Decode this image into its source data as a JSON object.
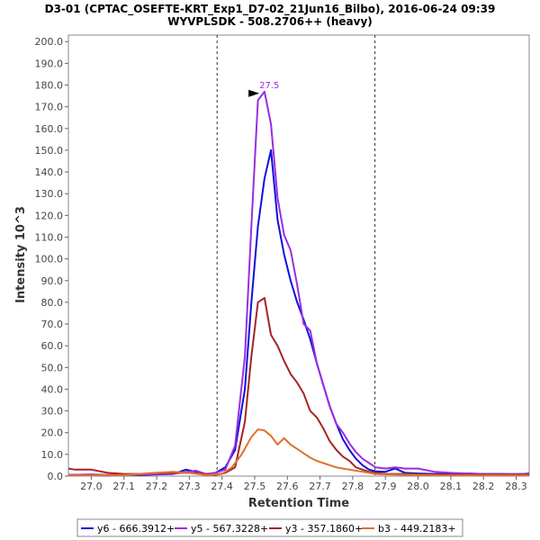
{
  "chart_data": {
    "type": "line",
    "title": "D3-01 (CPTAC_OSEFTE-KRT_Exp1_D7-02_21Jun16_Bilbo), 2016-06-24 09:39",
    "subtitle": "WYVPLSDK - 508.2706++ (heavy)",
    "xlabel": "Retention Time",
    "ylabel": "Intensity 10^3",
    "xlim": [
      26.93,
      28.34
    ],
    "ylim": [
      0,
      203
    ],
    "x_ticks": [
      27.0,
      27.1,
      27.2,
      27.3,
      27.4,
      27.5,
      27.6,
      27.7,
      27.8,
      27.9,
      28.0,
      28.1,
      28.2,
      28.3
    ],
    "x_tick_labels": [
      "27.0",
      "27.1",
      "27.2",
      "27.3",
      "27.4",
      "27.5",
      "27.6",
      "27.7",
      "27.8",
      "27.9",
      "28.0",
      "28.1",
      "28.2",
      "28.3"
    ],
    "y_ticks": [
      0,
      10,
      20,
      30,
      40,
      50,
      60,
      70,
      80,
      90,
      100,
      110,
      120,
      130,
      140,
      150,
      160,
      170,
      180,
      190,
      200
    ],
    "y_tick_labels": [
      "0.0",
      "10.0",
      "20.0",
      "30.0",
      "40.0",
      "50.0",
      "60.0",
      "70.0",
      "80.0",
      "90.0",
      "100.0",
      "110.0",
      "120.0",
      "130.0",
      "140.0",
      "150.0",
      "160.0",
      "170.0",
      "180.0",
      "190.0",
      "200.0"
    ],
    "grid": false,
    "legend_position": "bottom",
    "integration_bounds": [
      27.385,
      27.868
    ],
    "peak_annotation": {
      "x": 27.528,
      "y": 177,
      "label": "27.5",
      "color": "#9a2de0"
    },
    "series": [
      {
        "name": "y6 - 666.3912+",
        "color": "#1010dc",
        "x": [
          26.93,
          27.0,
          27.05,
          27.1,
          27.15,
          27.2,
          27.25,
          27.29,
          27.32,
          27.35,
          27.38,
          27.41,
          27.44,
          27.47,
          27.49,
          27.51,
          27.53,
          27.55,
          27.57,
          27.59,
          27.61,
          27.63,
          27.65,
          27.67,
          27.69,
          27.71,
          27.73,
          27.75,
          27.77,
          27.79,
          27.81,
          27.83,
          27.85,
          27.87,
          27.9,
          27.93,
          27.96,
          28.0,
          28.05,
          28.1,
          28.15,
          28.2,
          28.25,
          28.3,
          28.34
        ],
        "y": [
          0.5,
          0.5,
          0.3,
          0.8,
          0.5,
          0.8,
          1.0,
          3.0,
          2.0,
          0.8,
          1.5,
          4.0,
          12,
          40,
          80,
          115,
          137,
          150,
          118,
          102,
          90,
          80,
          72,
          63,
          52,
          42,
          32,
          24,
          17,
          12,
          8,
          5,
          3,
          2.2,
          2.0,
          3.5,
          1.5,
          1.2,
          1.0,
          1.0,
          1.2,
          1.0,
          1.0,
          0.8,
          1.2
        ]
      },
      {
        "name": "y5 - 567.3228+",
        "color": "#9a2de0",
        "x": [
          26.93,
          27.0,
          27.05,
          27.1,
          27.15,
          27.2,
          27.25,
          27.29,
          27.32,
          27.35,
          27.38,
          27.41,
          27.44,
          27.47,
          27.49,
          27.51,
          27.53,
          27.55,
          27.57,
          27.59,
          27.61,
          27.63,
          27.65,
          27.67,
          27.69,
          27.71,
          27.73,
          27.75,
          27.77,
          27.79,
          27.81,
          27.83,
          27.85,
          27.87,
          27.9,
          27.93,
          27.96,
          28.0,
          28.05,
          28.1,
          28.15,
          28.2,
          28.25,
          28.3,
          28.34
        ],
        "y": [
          0.5,
          0.8,
          0.5,
          0.8,
          0.8,
          1.0,
          1.0,
          2.0,
          2.5,
          1.0,
          1.5,
          3.0,
          14,
          55,
          115,
          173,
          177,
          162,
          128,
          111,
          104,
          88,
          70,
          67,
          52,
          42,
          32,
          24,
          20,
          15,
          11,
          8,
          6,
          4,
          3.5,
          4.0,
          3.5,
          3.5,
          2.0,
          1.5,
          1.2,
          1.0,
          1.0,
          1.0,
          1.0
        ]
      },
      {
        "name": "y3 - 357.1860+",
        "color": "#a52424",
        "x": [
          26.93,
          26.95,
          27.0,
          27.05,
          27.1,
          27.15,
          27.2,
          27.25,
          27.3,
          27.35,
          27.38,
          27.41,
          27.44,
          27.47,
          27.49,
          27.51,
          27.53,
          27.55,
          27.57,
          27.59,
          27.61,
          27.63,
          27.65,
          27.67,
          27.69,
          27.71,
          27.73,
          27.75,
          27.77,
          27.79,
          27.81,
          27.83,
          27.85,
          27.87,
          27.9,
          27.95,
          28.0,
          28.1,
          28.2,
          28.3,
          28.34
        ],
        "y": [
          3.5,
          3.0,
          3.0,
          1.5,
          1.0,
          1.0,
          1.5,
          1.5,
          1.5,
          1.0,
          0.5,
          1.5,
          4,
          25,
          55,
          80,
          82,
          65,
          60,
          53,
          47,
          43,
          38,
          30,
          27,
          22,
          16,
          12,
          9,
          7,
          4,
          3,
          2,
          1.5,
          1.0,
          1.0,
          0.8,
          0.5,
          0.5,
          0.5,
          0.5
        ]
      },
      {
        "name": "b3 - 449.2183+",
        "color": "#e0702c",
        "x": [
          26.93,
          27.0,
          27.1,
          27.15,
          27.2,
          27.25,
          27.3,
          27.35,
          27.4,
          27.43,
          27.46,
          27.49,
          27.51,
          27.53,
          27.55,
          27.57,
          27.59,
          27.61,
          27.63,
          27.65,
          27.67,
          27.69,
          27.71,
          27.73,
          27.75,
          27.77,
          27.79,
          27.81,
          27.83,
          27.85,
          27.87,
          27.9,
          28.0,
          28.1,
          28.2,
          28.3,
          28.34
        ],
        "y": [
          0.3,
          0.3,
          0.5,
          1.0,
          1.5,
          2.0,
          1.5,
          0.5,
          1.0,
          4.0,
          10,
          18,
          21.5,
          21,
          18.5,
          14.5,
          17.5,
          14.5,
          12.5,
          10.5,
          8.5,
          7,
          6,
          5,
          4,
          3.5,
          3,
          2.5,
          2,
          1.5,
          1,
          0.8,
          0.5,
          0.3,
          0.3,
          0.3,
          0.3
        ]
      }
    ]
  }
}
